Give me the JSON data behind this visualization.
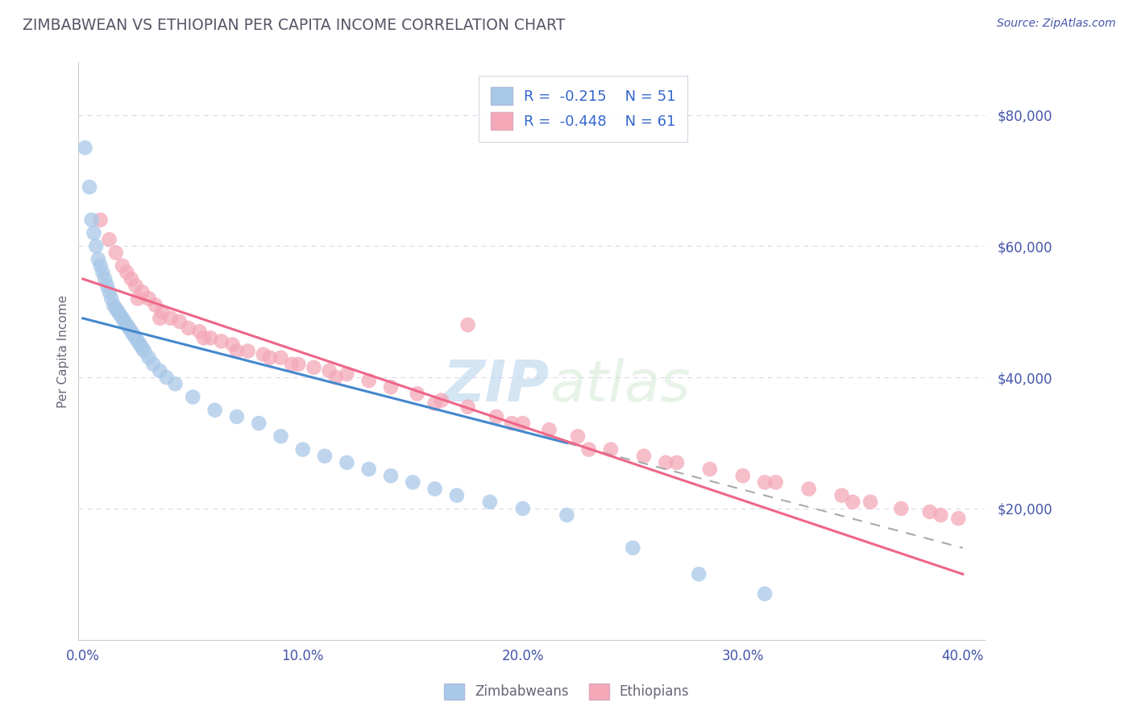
{
  "title": "ZIMBABWEAN VS ETHIOPIAN PER CAPITA INCOME CORRELATION CHART",
  "source_text": "Source: ZipAtlas.com",
  "ylabel": "Per Capita Income",
  "xlim": [
    -0.002,
    0.41
  ],
  "ylim": [
    0,
    88000
  ],
  "xticks": [
    0.0,
    0.1,
    0.2,
    0.3,
    0.4
  ],
  "xtick_labels": [
    "0.0%",
    "10.0%",
    "20.0%",
    "30.0%",
    "40.0%"
  ],
  "yticks": [
    20000,
    40000,
    60000,
    80000
  ],
  "ytick_labels": [
    "$20,000",
    "$40,000",
    "$60,000",
    "$80,000"
  ],
  "legend_r": [
    -0.215,
    -0.448
  ],
  "legend_n": [
    51,
    61
  ],
  "blue_color": "#a8c8e8",
  "pink_color": "#f4a8b8",
  "blue_line_color": "#4488cc",
  "pink_line_color": "#ee6688",
  "title_color": "#555566",
  "axis_label_color": "#666677",
  "tick_color": "#4455aa",
  "legend_text_color": "#3366cc",
  "background_color": "#ffffff",
  "grid_color": "#d8d8e8",
  "watermark_zip": "ZIP",
  "watermark_atlas": "atlas",
  "zim_line_x0": 0.0,
  "zim_line_y0": 49000,
  "zim_line_x1": 0.22,
  "zim_line_y1": 30000,
  "eth_line_x0": 0.0,
  "eth_line_y0": 55000,
  "eth_line_x1": 0.4,
  "eth_line_y1": 10000,
  "dash_line_x0": 0.22,
  "dash_line_y0": 30000,
  "dash_line_x1": 0.4,
  "dash_line_y1": 14000,
  "zimbabwe_x": [
    0.001,
    0.003,
    0.004,
    0.005,
    0.006,
    0.007,
    0.008,
    0.009,
    0.01,
    0.011,
    0.012,
    0.013,
    0.014,
    0.015,
    0.016,
    0.017,
    0.018,
    0.019,
    0.02,
    0.021,
    0.022,
    0.023,
    0.024,
    0.025,
    0.026,
    0.027,
    0.028,
    0.03,
    0.032,
    0.035,
    0.038,
    0.042,
    0.05,
    0.06,
    0.07,
    0.08,
    0.09,
    0.1,
    0.11,
    0.12,
    0.13,
    0.14,
    0.15,
    0.16,
    0.17,
    0.185,
    0.2,
    0.22,
    0.25,
    0.28,
    0.31
  ],
  "zimbabwe_y": [
    75000,
    69000,
    64000,
    62000,
    60000,
    58000,
    57000,
    56000,
    55000,
    54000,
    53000,
    52000,
    51000,
    50500,
    50000,
    49500,
    49000,
    48500,
    48000,
    47500,
    47000,
    46500,
    46000,
    45500,
    45000,
    44500,
    44000,
    43000,
    42000,
    41000,
    40000,
    39000,
    37000,
    35000,
    34000,
    33000,
    31000,
    29000,
    28000,
    27000,
    26000,
    25000,
    24000,
    23000,
    22000,
    21000,
    20000,
    19000,
    14000,
    10000,
    7000
  ],
  "ethiopia_x": [
    0.008,
    0.012,
    0.015,
    0.018,
    0.02,
    0.022,
    0.024,
    0.027,
    0.03,
    0.033,
    0.036,
    0.04,
    0.044,
    0.048,
    0.053,
    0.058,
    0.063,
    0.068,
    0.075,
    0.082,
    0.09,
    0.098,
    0.105,
    0.112,
    0.12,
    0.13,
    0.14,
    0.152,
    0.163,
    0.175,
    0.188,
    0.2,
    0.212,
    0.225,
    0.24,
    0.255,
    0.27,
    0.285,
    0.3,
    0.315,
    0.33,
    0.345,
    0.358,
    0.372,
    0.385,
    0.398,
    0.025,
    0.035,
    0.055,
    0.07,
    0.085,
    0.095,
    0.115,
    0.16,
    0.195,
    0.23,
    0.265,
    0.31,
    0.35,
    0.39,
    0.175
  ],
  "ethiopia_y": [
    64000,
    61000,
    59000,
    57000,
    56000,
    55000,
    54000,
    53000,
    52000,
    51000,
    50000,
    49000,
    48500,
    47500,
    47000,
    46000,
    45500,
    45000,
    44000,
    43500,
    43000,
    42000,
    41500,
    41000,
    40500,
    39500,
    38500,
    37500,
    36500,
    35500,
    34000,
    33000,
    32000,
    31000,
    29000,
    28000,
    27000,
    26000,
    25000,
    24000,
    23000,
    22000,
    21000,
    20000,
    19500,
    18500,
    52000,
    49000,
    46000,
    44000,
    43000,
    42000,
    40000,
    36000,
    33000,
    29000,
    27000,
    24000,
    21000,
    19000,
    48000
  ]
}
